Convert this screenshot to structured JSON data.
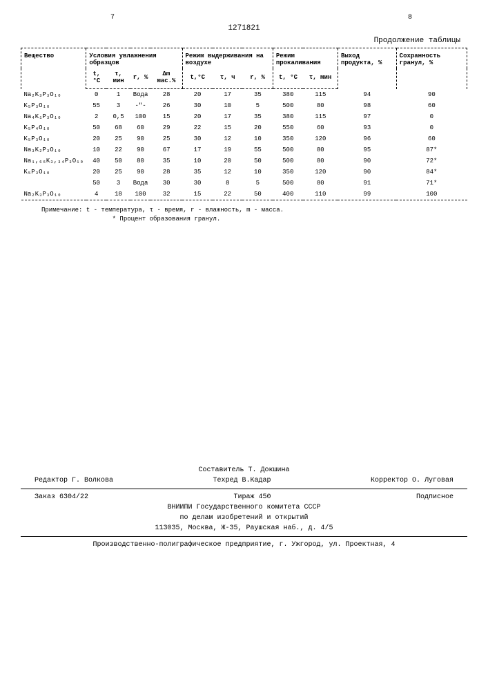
{
  "page_left": "7",
  "page_right": "8",
  "patent_number": "1271821",
  "table_continuation": "Продолжение таблицы",
  "headers": {
    "substance": "Вещество",
    "humidification": "Условия увлажнения образцов",
    "air_mode": "Режим выдерживания на воздухе",
    "calcination": "Режим прокаливания",
    "yield": "Выход продукта, %",
    "preservation": "Сохранность гранул, %",
    "sub_t": "t, °С",
    "sub_tau": "τ, мин",
    "sub_r": "r, %",
    "sub_dm": "Δm мас.%",
    "sub_t2": "t,°С",
    "sub_tau_h": "τ, ч",
    "sub_r2": "r, %",
    "sub_t3": "t, °С",
    "sub_tau3": "τ, мин"
  },
  "rows": [
    {
      "substance": "Na₂K₃P₃O₁₀",
      "t1": "0",
      "tau1": "1",
      "r1": "Вода",
      "dm": "28",
      "t2": "20",
      "tau2": "17",
      "r2": "35",
      "t3": "380",
      "tau3": "115",
      "yield": "94",
      "pres": "90"
    },
    {
      "substance": "K₅P₃O₁₀",
      "t1": "55",
      "tau1": "3",
      "r1": "-\"-",
      "dm": "26",
      "t2": "30",
      "tau2": "10",
      "r2": "5",
      "t3": "500",
      "tau3": "80",
      "yield": "98",
      "pres": "60"
    },
    {
      "substance": "Na₄K₁P₃O₁₀",
      "t1": "2",
      "tau1": "0,5",
      "r1": "100",
      "dm": "15",
      "t2": "20",
      "tau2": "17",
      "r2": "35",
      "t3": "380",
      "tau3": "115",
      "yield": "97",
      "pres": "0"
    },
    {
      "substance": "K₅P₄O₁₀",
      "t1": "50",
      "tau1": "68",
      "r1": "60",
      "dm": "29",
      "t2": "22",
      "tau2": "15",
      "r2": "20",
      "t3": "550",
      "tau3": "60",
      "yield": "93",
      "pres": "0"
    },
    {
      "substance": "K₅P₃O₁₀",
      "t1": "20",
      "tau1": "25",
      "r1": "90",
      "dm": "25",
      "t2": "30",
      "tau2": "12",
      "r2": "10",
      "t3": "350",
      "tau3": "120",
      "yield": "96",
      "pres": "60"
    },
    {
      "substance": "Na₃K₂P₃O₁₀",
      "t1": "10",
      "tau1": "22",
      "r1": "90",
      "dm": "67",
      "t2": "17",
      "tau2": "19",
      "r2": "55",
      "t3": "500",
      "tau3": "80",
      "yield": "95",
      "pres": "87*"
    },
    {
      "substance": "Na₁,₆₆K₃,₃₄P₃O₁₀",
      "t1": "40",
      "tau1": "50",
      "r1": "80",
      "dm": "35",
      "t2": "10",
      "tau2": "20",
      "r2": "50",
      "t3": "500",
      "tau3": "80",
      "yield": "90",
      "pres": "72*"
    },
    {
      "substance": "K₅P₃O₁₀",
      "t1": "20",
      "tau1": "25",
      "r1": "90",
      "dm": "28",
      "t2": "35",
      "tau2": "12",
      "r2": "10",
      "t3": "350",
      "tau3": "120",
      "yield": "90",
      "pres": "84*"
    },
    {
      "substance": "",
      "t1": "50",
      "tau1": "3",
      "r1": "Вода",
      "dm": "30",
      "t2": "30",
      "tau2": "8",
      "r2": "5",
      "t3": "500",
      "tau3": "80",
      "yield": "91",
      "pres": "71*"
    },
    {
      "substance": "Na₂K₃P₃O₁₀",
      "t1": "4",
      "tau1": "18",
      "r1": "100",
      "dm": "32",
      "t2": "15",
      "tau2": "22",
      "r2": "50",
      "t3": "400",
      "tau3": "110",
      "yield": "99",
      "pres": "100"
    }
  ],
  "note_label": "Примечание:",
  "note_text": "t - температура, τ - время, r - влажность, m - масса.",
  "note_star": "* Процент образования гранул.",
  "footer": {
    "compiler": "Составитель Т. Докшина",
    "editor": "Редактор Г. Волкова",
    "techred": "Техред В.Кадар",
    "corrector": "Корректор О. Луговая",
    "order": "Заказ 6304/22",
    "tirage": "Тираж 450",
    "subscription": "Подписное",
    "vniipi": "ВНИИПИ Государственного комитета СССР",
    "affairs": "по делам изобретений и открытий",
    "address": "113035, Москва, Ж-35, Раушская наб., д. 4/5",
    "printing": "Производственно-полиграфическое предприятие, г. Ужгород, ул. Проектная, 4"
  }
}
